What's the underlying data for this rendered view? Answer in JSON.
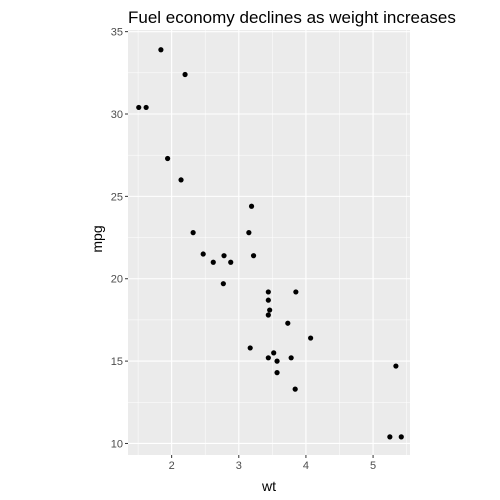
{
  "chart_data": {
    "type": "scatter",
    "title": "Fuel economy declines as weight increases",
    "xlabel": "wt",
    "ylabel": "mpg",
    "xlim": [
      1.35,
      5.55
    ],
    "ylim": [
      9.3,
      35.1
    ],
    "xticks": [
      2,
      3,
      4,
      5
    ],
    "yticks": [
      10,
      15,
      20,
      25,
      30,
      35
    ],
    "xtick_labels": [
      "2",
      "3",
      "4",
      "5"
    ],
    "ytick_labels": [
      "10",
      "15",
      "20",
      "25",
      "30",
      "35"
    ],
    "grid": true,
    "background": "#ebebeb",
    "grid_color": "#ffffff",
    "point_color": "#000000",
    "points": [
      {
        "x": 1.51,
        "y": 30.4
      },
      {
        "x": 1.62,
        "y": 30.4
      },
      {
        "x": 1.84,
        "y": 33.9
      },
      {
        "x": 1.94,
        "y": 27.3
      },
      {
        "x": 2.14,
        "y": 26.0
      },
      {
        "x": 2.2,
        "y": 32.4
      },
      {
        "x": 2.32,
        "y": 22.8
      },
      {
        "x": 2.47,
        "y": 21.5
      },
      {
        "x": 2.62,
        "y": 21.0
      },
      {
        "x": 2.77,
        "y": 19.7
      },
      {
        "x": 2.78,
        "y": 21.4
      },
      {
        "x": 2.88,
        "y": 21.0
      },
      {
        "x": 3.15,
        "y": 22.8
      },
      {
        "x": 3.17,
        "y": 15.8
      },
      {
        "x": 3.19,
        "y": 24.4
      },
      {
        "x": 3.22,
        "y": 21.4
      },
      {
        "x": 3.44,
        "y": 18.7
      },
      {
        "x": 3.44,
        "y": 19.2
      },
      {
        "x": 3.44,
        "y": 17.8
      },
      {
        "x": 3.44,
        "y": 15.2
      },
      {
        "x": 3.46,
        "y": 18.1
      },
      {
        "x": 3.52,
        "y": 15.5
      },
      {
        "x": 3.57,
        "y": 15.0
      },
      {
        "x": 3.57,
        "y": 14.3
      },
      {
        "x": 3.73,
        "y": 17.3
      },
      {
        "x": 3.78,
        "y": 15.2
      },
      {
        "x": 3.84,
        "y": 13.3
      },
      {
        "x": 3.85,
        "y": 19.2
      },
      {
        "x": 4.07,
        "y": 16.4
      },
      {
        "x": 5.25,
        "y": 10.4
      },
      {
        "x": 5.34,
        "y": 14.7
      },
      {
        "x": 5.42,
        "y": 10.4
      }
    ]
  }
}
